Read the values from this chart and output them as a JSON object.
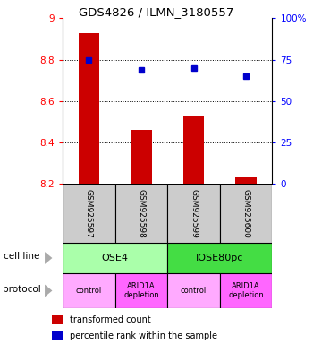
{
  "title": "GDS4826 / ILMN_3180557",
  "samples": [
    "GSM925597",
    "GSM925598",
    "GSM925599",
    "GSM925600"
  ],
  "bar_values": [
    8.93,
    8.46,
    8.53,
    8.23
  ],
  "bar_baseline": 8.2,
  "dot_values": [
    8.8,
    8.75,
    8.76,
    8.72
  ],
  "ylim_left": [
    8.2,
    9.0
  ],
  "ylim_right": [
    0,
    100
  ],
  "yticks_left": [
    8.2,
    8.4,
    8.6,
    8.8,
    9.0
  ],
  "ytick_labels_left": [
    "8.2",
    "8.4",
    "8.6",
    "8.8",
    "9"
  ],
  "yticks_right": [
    0,
    25,
    50,
    75,
    100
  ],
  "ytick_labels_right": [
    "0",
    "25",
    "50",
    "75",
    "100%"
  ],
  "bar_color": "#cc0000",
  "dot_color": "#0000cc",
  "protocols": [
    "control",
    "ARID1A\ndepletion",
    "control",
    "ARID1A\ndepletion"
  ],
  "label_cell_line": "cell line",
  "label_protocol": "protocol",
  "legend_bar_label": "transformed count",
  "legend_dot_label": "percentile rank within the sample",
  "sample_box_color": "#cccccc",
  "ose4_color": "#aaffaa",
  "iose80pc_color": "#44dd44",
  "proto_control_color": "#ffaaff",
  "proto_arid_color": "#ff66ff"
}
